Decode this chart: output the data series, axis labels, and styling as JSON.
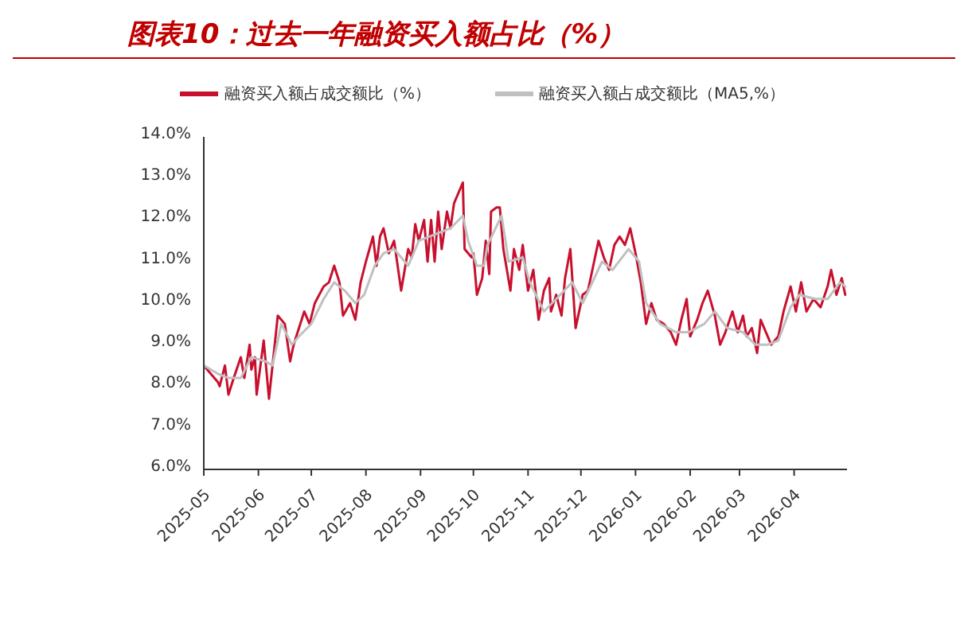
{
  "chart_data": {
    "type": "line",
    "title": "图表10：过去一年融资买入额占比（%）",
    "xlim": [
      "2025-05-01",
      "2026-05-01"
    ],
    "xticks": [
      "2025-05",
      "2025-06",
      "2025-07",
      "2025-08",
      "2025-09",
      "2025-10",
      "2025-11",
      "2025-12",
      "2026-01",
      "2026-02",
      "2026-03",
      "2026-04"
    ],
    "ylim": [
      6,
      14
    ],
    "yticks": [
      {
        "value": 6,
        "label": "6.0%"
      },
      {
        "value": 7,
        "label": "7.0%"
      },
      {
        "value": 8,
        "label": "8.0%"
      },
      {
        "value": 9,
        "label": "9.0%"
      },
      {
        "value": 10,
        "label": "10.0%"
      },
      {
        "value": 11,
        "label": "11.0%"
      },
      {
        "value": 12,
        "label": "12.0%"
      },
      {
        "value": 13,
        "label": "13.0%"
      },
      {
        "value": 14,
        "label": "14.0%"
      }
    ],
    "grid": false,
    "legend": "top",
    "marker": "none",
    "line_style": "solid",
    "series": [
      {
        "name": "融资买入额占成交额比（%）",
        "color": "#c8102e",
        "x": [
          "2025-05-01",
          "2025-05-09",
          "2025-05-10",
          "2025-05-13",
          "2025-05-15",
          "2025-05-18",
          "2025-05-22",
          "2025-05-24",
          "2025-05-27",
          "2025-05-28",
          "2025-05-30",
          "2025-05-31",
          "2025-06-04",
          "2025-06-07",
          "2025-06-09",
          "2025-06-12",
          "2025-06-16",
          "2025-06-19",
          "2025-06-21",
          "2025-06-27",
          "2025-06-30",
          "2025-07-03",
          "2025-07-08",
          "2025-07-11",
          "2025-07-14",
          "2025-07-17",
          "2025-07-19",
          "2025-07-23",
          "2025-07-26",
          "2025-07-29",
          "2025-08-01",
          "2025-08-05",
          "2025-08-07",
          "2025-08-09",
          "2025-08-11",
          "2025-08-14",
          "2025-08-17",
          "2025-08-21",
          "2025-08-25",
          "2025-08-27",
          "2025-08-29",
          "2025-08-31",
          "2025-09-03",
          "2025-09-05",
          "2025-09-07",
          "2025-09-09",
          "2025-09-11",
          "2025-09-13",
          "2025-09-16",
          "2025-09-18",
          "2025-09-20",
          "2025-09-25",
          "2025-09-26",
          "2025-09-30",
          "2025-10-01",
          "2025-10-03",
          "2025-10-06",
          "2025-10-08",
          "2025-10-10",
          "2025-10-11",
          "2025-10-14",
          "2025-10-16",
          "2025-10-18",
          "2025-10-22",
          "2025-10-24",
          "2025-10-27",
          "2025-10-29",
          "2025-11-01",
          "2025-11-04",
          "2025-11-07",
          "2025-11-10",
          "2025-11-13",
          "2025-11-14",
          "2025-11-17",
          "2025-11-20",
          "2025-11-22",
          "2025-11-25",
          "2025-11-28",
          "2025-12-02",
          "2025-12-05",
          "2025-12-08",
          "2025-12-11",
          "2025-12-14",
          "2025-12-17",
          "2025-12-20",
          "2025-12-23",
          "2025-12-26",
          "2025-12-29",
          "2026-01-01",
          "2026-01-04",
          "2026-01-07",
          "2026-01-10",
          "2026-01-13",
          "2026-01-17",
          "2026-01-21",
          "2026-01-24",
          "2026-01-27",
          "2026-01-30",
          "2026-02-01",
          "2026-02-05",
          "2026-02-08",
          "2026-02-11",
          "2026-02-15",
          "2026-02-18",
          "2026-02-21",
          "2026-02-25",
          "2026-02-28",
          "2026-03-03",
          "2026-03-05",
          "2026-03-08",
          "2026-03-11",
          "2026-03-13",
          "2026-03-16",
          "2026-03-19",
          "2026-03-23",
          "2026-03-26",
          "2026-03-30",
          "2026-04-02",
          "2026-04-05",
          "2026-04-08",
          "2026-04-12",
          "2026-04-16",
          "2026-04-20",
          "2026-04-22",
          "2026-04-25",
          "2026-04-28",
          "2026-04-30"
        ],
        "values": [
          8.5,
          8.1,
          8.0,
          8.5,
          7.8,
          8.2,
          8.7,
          8.2,
          9.0,
          8.4,
          8.7,
          7.8,
          9.1,
          7.7,
          8.5,
          9.7,
          9.5,
          8.6,
          9.0,
          9.8,
          9.5,
          10.0,
          10.4,
          10.5,
          10.9,
          10.5,
          9.7,
          10.0,
          9.6,
          10.5,
          11.0,
          11.6,
          10.9,
          11.6,
          11.8,
          11.2,
          11.5,
          10.3,
          11.3,
          11.1,
          11.9,
          11.5,
          12.0,
          11.0,
          12.0,
          11.0,
          12.2,
          11.3,
          12.2,
          11.8,
          12.4,
          12.9,
          11.3,
          11.1,
          11.2,
          10.2,
          10.6,
          11.5,
          10.7,
          12.2,
          12.3,
          12.3,
          11.3,
          10.3,
          11.3,
          10.8,
          11.4,
          10.3,
          10.8,
          9.6,
          10.3,
          10.6,
          9.8,
          10.2,
          9.7,
          10.6,
          11.3,
          9.4,
          10.2,
          10.3,
          10.9,
          11.5,
          11.1,
          10.8,
          11.4,
          11.6,
          11.4,
          11.8,
          11.2,
          10.5,
          9.5,
          10.0,
          9.6,
          9.5,
          9.3,
          9.0,
          9.6,
          10.1,
          9.2,
          9.6,
          10.0,
          10.3,
          9.7,
          9.0,
          9.3,
          9.8,
          9.3,
          9.7,
          9.2,
          9.4,
          8.8,
          9.6,
          9.3,
          9.0,
          9.2,
          9.8,
          10.4,
          9.8,
          10.5,
          9.8,
          10.1,
          9.9,
          10.4,
          10.8,
          10.2,
          10.6,
          10.2
        ]
      },
      {
        "name": "融资买入额占成交额比（MA5,%）",
        "color": "#c0c0c0",
        "x": [
          "2025-05-01",
          "2025-05-09",
          "2025-05-15",
          "2025-05-22",
          "2025-05-28",
          "2025-06-05",
          "2025-06-09",
          "2025-06-14",
          "2025-06-20",
          "2025-06-24",
          "2025-07-01",
          "2025-07-08",
          "2025-07-14",
          "2025-07-20",
          "2025-07-26",
          "2025-07-31",
          "2025-08-06",
          "2025-08-11",
          "2025-08-17",
          "2025-08-21",
          "2025-08-25",
          "2025-08-31",
          "2025-09-06",
          "2025-09-12",
          "2025-09-18",
          "2025-09-25",
          "2025-09-28",
          "2025-10-03",
          "2025-10-07",
          "2025-10-09",
          "2025-10-17",
          "2025-10-21",
          "2025-10-29",
          "2025-11-02",
          "2025-11-10",
          "2025-11-17",
          "2025-11-26",
          "2025-12-02",
          "2025-12-13",
          "2025-12-19",
          "2025-12-28",
          "2026-01-03",
          "2026-01-07",
          "2026-01-15",
          "2026-01-24",
          "2026-01-31",
          "2026-02-09",
          "2026-02-15",
          "2026-02-22",
          "2026-03-03",
          "2026-03-10",
          "2026-03-17",
          "2026-03-23",
          "2026-03-30",
          "2026-04-04",
          "2026-04-13",
          "2026-04-20",
          "2026-04-27",
          "2026-04-30"
        ],
        "values": [
          8.5,
          8.3,
          8.2,
          8.2,
          8.7,
          8.6,
          8.5,
          9.5,
          9.0,
          9.2,
          9.5,
          10.1,
          10.5,
          10.3,
          10.0,
          10.2,
          10.9,
          11.2,
          11.3,
          11.1,
          10.9,
          11.5,
          11.6,
          11.7,
          11.8,
          12.1,
          11.5,
          10.9,
          10.9,
          11.4,
          12.1,
          11.0,
          11.1,
          10.5,
          9.8,
          10.1,
          10.5,
          10.0,
          11.0,
          10.8,
          11.3,
          11.0,
          10.0,
          9.5,
          9.3,
          9.3,
          9.5,
          9.8,
          9.4,
          9.3,
          9.0,
          9.0,
          9.1,
          9.9,
          10.2,
          10.1,
          10.1,
          10.5,
          10.4
        ]
      }
    ]
  }
}
